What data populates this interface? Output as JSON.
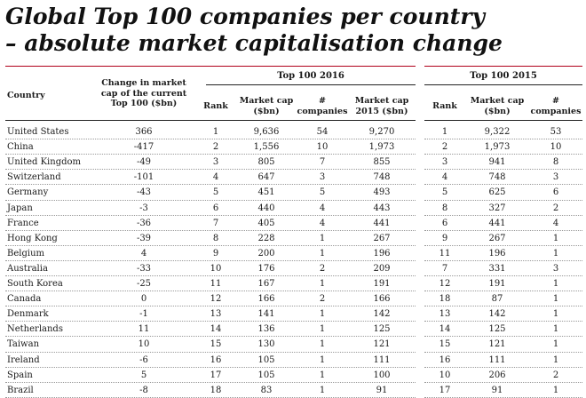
{
  "title_line1": "Global Top 100 companies per country",
  "title_line2": "– absolute market capitalisation change",
  "headers": {
    "country": "Country",
    "change": "Change in market cap of the current Top 100 ($bn)",
    "group_2016": "Top 100 2016",
    "group_2015": "Top 100 2015",
    "rank": "Rank",
    "market_cap": "Market cap ($bn)",
    "companies": "# companies",
    "market_cap_2015": "Market cap 2015 ($bn)"
  },
  "rows": [
    {
      "country": "United States",
      "change": "366",
      "rank16": "1",
      "mc16": "9,636",
      "co16": "54",
      "mc15": "9,270",
      "rank15": "1",
      "mc15b": "9,322",
      "co15": "53"
    },
    {
      "country": "China",
      "change": "-417",
      "rank16": "2",
      "mc16": "1,556",
      "co16": "10",
      "mc15": "1,973",
      "rank15": "2",
      "mc15b": "1,973",
      "co15": "10"
    },
    {
      "country": "United Kingdom",
      "change": "-49",
      "rank16": "3",
      "mc16": "805",
      "co16": "7",
      "mc15": "855",
      "rank15": "3",
      "mc15b": "941",
      "co15": "8"
    },
    {
      "country": "Switzerland",
      "change": "-101",
      "rank16": "4",
      "mc16": "647",
      "co16": "3",
      "mc15": "748",
      "rank15": "4",
      "mc15b": "748",
      "co15": "3"
    },
    {
      "country": "Germany",
      "change": "-43",
      "rank16": "5",
      "mc16": "451",
      "co16": "5",
      "mc15": "493",
      "rank15": "5",
      "mc15b": "625",
      "co15": "6"
    },
    {
      "country": "Japan",
      "change": "-3",
      "rank16": "6",
      "mc16": "440",
      "co16": "4",
      "mc15": "443",
      "rank15": "8",
      "mc15b": "327",
      "co15": "2"
    },
    {
      "country": "France",
      "change": "-36",
      "rank16": "7",
      "mc16": "405",
      "co16": "4",
      "mc15": "441",
      "rank15": "6",
      "mc15b": "441",
      "co15": "4"
    },
    {
      "country": "Hong Kong",
      "change": "-39",
      "rank16": "8",
      "mc16": "228",
      "co16": "1",
      "mc15": "267",
      "rank15": "9",
      "mc15b": "267",
      "co15": "1"
    },
    {
      "country": "Belgium",
      "change": "4",
      "rank16": "9",
      "mc16": "200",
      "co16": "1",
      "mc15": "196",
      "rank15": "11",
      "mc15b": "196",
      "co15": "1"
    },
    {
      "country": "Australia",
      "change": "-33",
      "rank16": "10",
      "mc16": "176",
      "co16": "2",
      "mc15": "209",
      "rank15": "7",
      "mc15b": "331",
      "co15": "3"
    },
    {
      "country": "South Korea",
      "change": "-25",
      "rank16": "11",
      "mc16": "167",
      "co16": "1",
      "mc15": "191",
      "rank15": "12",
      "mc15b": "191",
      "co15": "1"
    },
    {
      "country": "Canada",
      "change": "0",
      "rank16": "12",
      "mc16": "166",
      "co16": "2",
      "mc15": "166",
      "rank15": "18",
      "mc15b": "87",
      "co15": "1"
    },
    {
      "country": "Denmark",
      "change": "-1",
      "rank16": "13",
      "mc16": "141",
      "co16": "1",
      "mc15": "142",
      "rank15": "13",
      "mc15b": "142",
      "co15": "1"
    },
    {
      "country": "Netherlands",
      "change": "11",
      "rank16": "14",
      "mc16": "136",
      "co16": "1",
      "mc15": "125",
      "rank15": "14",
      "mc15b": "125",
      "co15": "1"
    },
    {
      "country": "Taiwan",
      "change": "10",
      "rank16": "15",
      "mc16": "130",
      "co16": "1",
      "mc15": "121",
      "rank15": "15",
      "mc15b": "121",
      "co15": "1"
    },
    {
      "country": "Ireland",
      "change": "-6",
      "rank16": "16",
      "mc16": "105",
      "co16": "1",
      "mc15": "111",
      "rank15": "16",
      "mc15b": "111",
      "co15": "1"
    },
    {
      "country": "Spain",
      "change": "5",
      "rank16": "17",
      "mc16": "105",
      "co16": "1",
      "mc15": "100",
      "rank15": "10",
      "mc15b": "206",
      "co15": "2"
    },
    {
      "country": "Brazil",
      "change": "-8",
      "rank16": "18",
      "mc16": "83",
      "co16": "1",
      "mc15": "91",
      "rank15": "17",
      "mc15b": "91",
      "co15": "1"
    }
  ]
}
